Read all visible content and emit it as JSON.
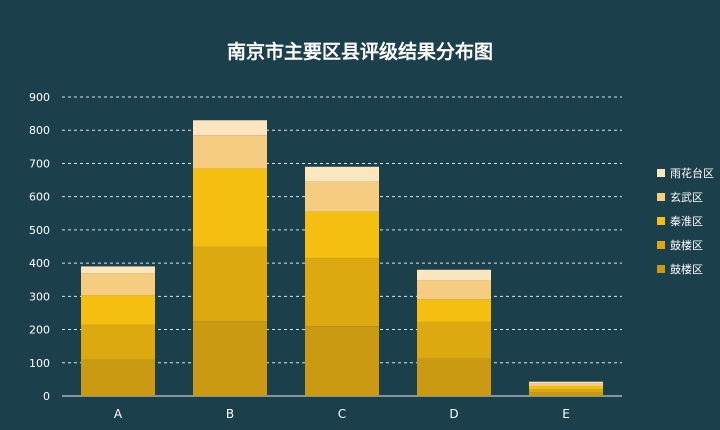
{
  "chart_data": {
    "type": "bar",
    "stacked": true,
    "title": "南京市主要区县评级结果分布图",
    "categories": [
      "A",
      "B",
      "C",
      "D",
      "E"
    ],
    "ylim": [
      0,
      900
    ],
    "yticks": [
      0,
      100,
      200,
      300,
      400,
      500,
      600,
      700,
      800,
      900
    ],
    "grid": true,
    "legend_position": "right",
    "series": [
      {
        "name": "鼓楼区",
        "color": "#c99a12",
        "values": [
          110,
          225,
          210,
          113,
          10
        ]
      },
      {
        "name": "鼓楼区",
        "color": "#dcaa10",
        "values": [
          105,
          225,
          205,
          110,
          10
        ]
      },
      {
        "name": "秦淮区",
        "color": "#f4bf10",
        "values": [
          88,
          235,
          140,
          68,
          10
        ]
      },
      {
        "name": "玄武区",
        "color": "#f6cd80",
        "values": [
          67,
          100,
          90,
          57,
          8
        ]
      },
      {
        "name": "雨花台区",
        "color": "#fbe6bf",
        "values": [
          20,
          45,
          45,
          32,
          5
        ]
      }
    ]
  },
  "colors": {
    "background": "#1c3f4c",
    "text": "#ffffff",
    "grid": "#ffffff"
  }
}
